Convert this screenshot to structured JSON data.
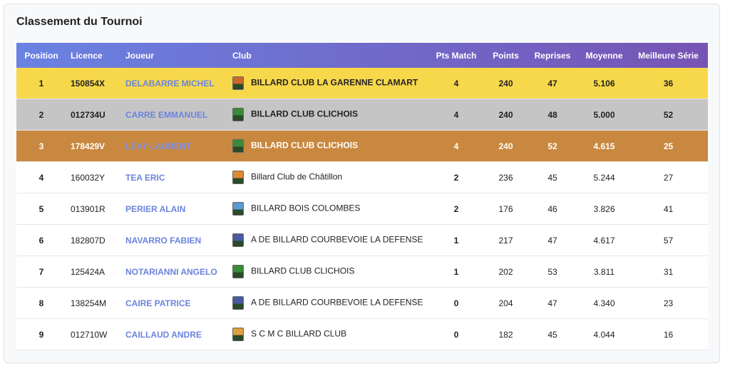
{
  "header": {
    "title": "Classement du Tournoi"
  },
  "table": {
    "columns": [
      "Position",
      "Licence",
      "Joueur",
      "Club",
      "Pts Match",
      "Points",
      "Reprises",
      "Moyenne",
      "Meilleure Série"
    ],
    "rows": [
      [
        "1",
        "150854X",
        "DELABARRE MICHEL",
        "BILLARD CLUB LA GARENNE CLAMART",
        "4",
        "240",
        "47",
        "5.106",
        "36"
      ],
      [
        "2",
        "012734U",
        "CARRE EMMANUEL",
        "BILLARD CLUB CLICHOIS",
        "4",
        "240",
        "48",
        "5.000",
        "52"
      ],
      [
        "3",
        "178429V",
        "LEVY LAURENT",
        "BILLARD CLUB CLICHOIS",
        "4",
        "240",
        "52",
        "4.615",
        "25"
      ],
      [
        "4",
        "160032Y",
        "TEA ERIC",
        "Billard Club de Châtillon",
        "2",
        "236",
        "45",
        "5.244",
        "27"
      ],
      [
        "5",
        "013901R",
        "PERIER ALAIN",
        "BILLARD BOIS COLOMBES",
        "2",
        "176",
        "46",
        "3.826",
        "41"
      ],
      [
        "6",
        "182807D",
        "NAVARRO FABIEN",
        "A DE BILLARD COURBEVOIE LA DEFENSE",
        "1",
        "217",
        "47",
        "4.617",
        "57"
      ],
      [
        "7",
        "125424A",
        "NOTARIANNI ANGELO",
        "BILLARD CLUB CLICHOIS",
        "1",
        "202",
        "53",
        "3.811",
        "31"
      ],
      [
        "8",
        "138254M",
        "CAIRE PATRICE",
        "A DE BILLARD COURBEVOIE LA DEFENSE",
        "0",
        "204",
        "47",
        "4.340",
        "23"
      ],
      [
        "9",
        "012710W",
        "CAILLAUD ANDRE",
        "S C M C BILLARD CLUB",
        "0",
        "182",
        "45",
        "4.044",
        "16"
      ]
    ]
  }
}
